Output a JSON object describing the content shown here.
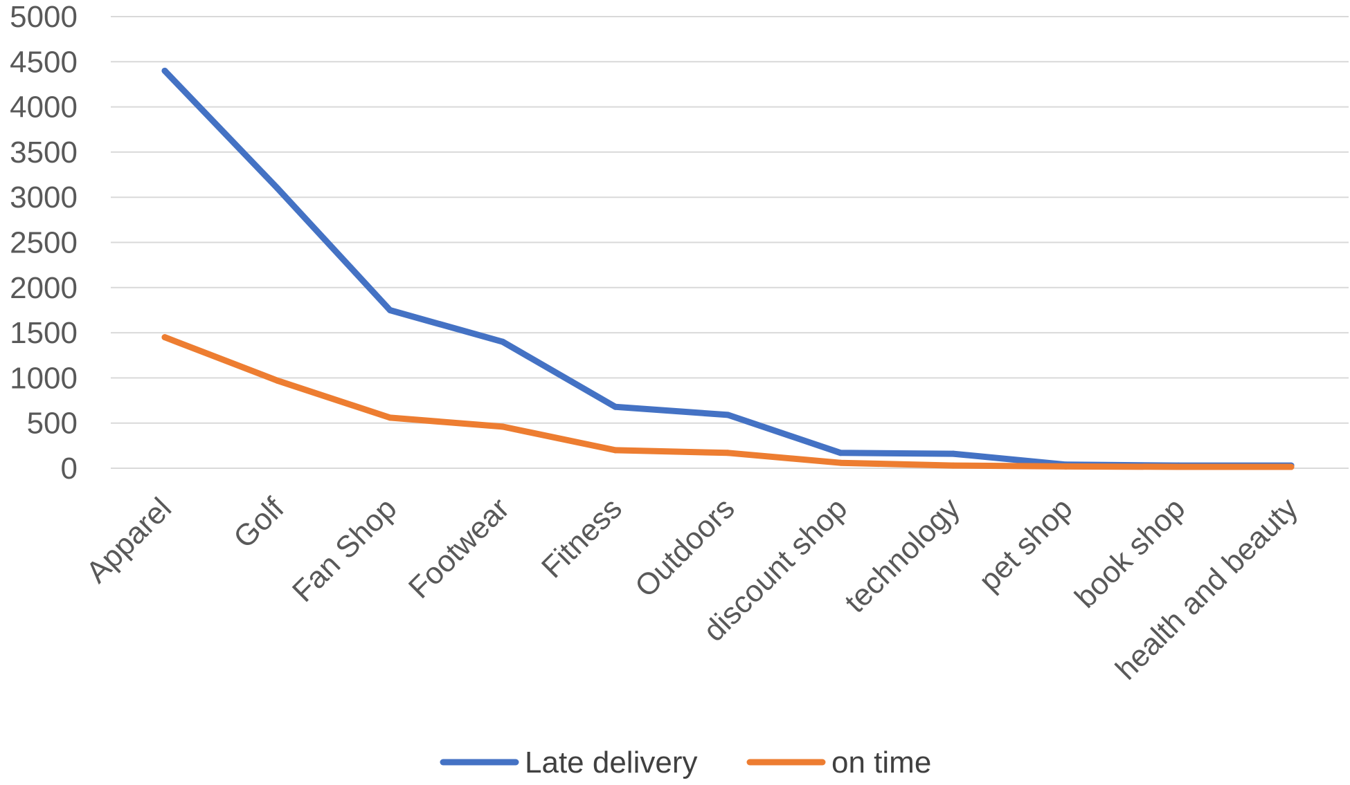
{
  "chart_data": {
    "type": "line",
    "categories": [
      "Apparel",
      "Golf",
      "Fan Shop",
      "Footwear",
      "Fitness",
      "Outdoors",
      "discount shop",
      "technology",
      "pet shop",
      "book shop",
      "health and beauty"
    ],
    "series": [
      {
        "name": "Late delivery",
        "color": "#4472c4",
        "values": [
          4400,
          3100,
          1750,
          1400,
          680,
          590,
          170,
          160,
          40,
          30,
          30
        ]
      },
      {
        "name": "on time",
        "color": "#ed7d31",
        "values": [
          1450,
          970,
          560,
          460,
          200,
          170,
          60,
          30,
          20,
          15,
          15
        ]
      }
    ],
    "y_ticks": [
      "0",
      "500",
      "1000",
      "1500",
      "2000",
      "2500",
      "3000",
      "3500",
      "4000",
      "4500",
      "5000"
    ],
    "ylim": [
      0,
      5000
    ],
    "grid": true,
    "legend_position": "bottom",
    "gridline_color": "#d9d9d9",
    "tick_label_color": "#595959"
  }
}
